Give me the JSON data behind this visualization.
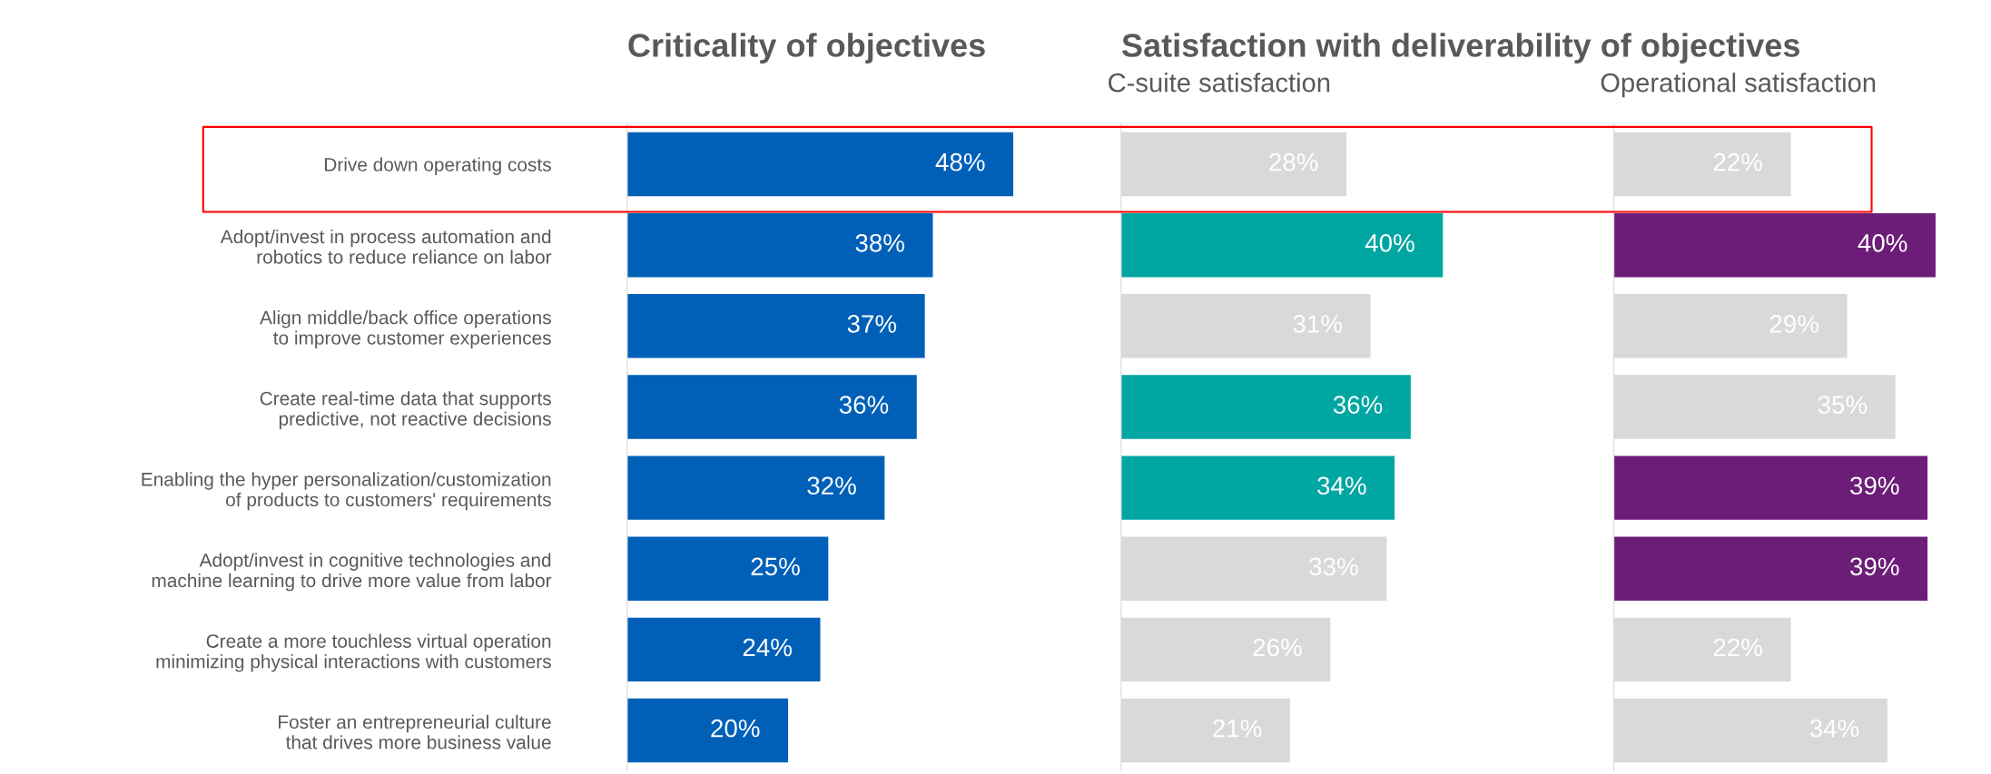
{
  "chart_data": [
    {
      "type": "bar",
      "orientation": "horizontal",
      "title": "Criticality of objectives",
      "categories": [
        "Drive down operating costs",
        "Adopt/invest in process automation and\nrobotics to reduce reliance on labor",
        "Align middle/back office operations\nto improve customer experiences",
        "Create real-time data that supports\npredictive, not reactive decisions",
        "Enabling the hyper personalization/customization\nof products to customers' requirements",
        "Adopt/invest in cognitive technologies and\nmachine learning to drive more value from labor",
        "Create a more touchless virtual operation\nminimizing physical interactions with customers",
        "Foster an entrepreneurial culture\nthat drives more business value"
      ],
      "values": [
        48,
        38,
        37,
        36,
        32,
        25,
        24,
        20
      ],
      "colors": [
        "#0060b8",
        "#0060b8",
        "#0060b8",
        "#0060b8",
        "#0060b8",
        "#0060b8",
        "#0060b8",
        "#0060b8"
      ],
      "value_labels": [
        "48%",
        "38%",
        "37%",
        "36%",
        "32%",
        "25%",
        "24%",
        "20%"
      ],
      "tick_labels": "y"
    },
    {
      "type": "bar",
      "orientation": "horizontal",
      "title": "Satisfaction with deliverability of objectives",
      "subtitle": "C-suite satisfaction",
      "categories": [
        null,
        null,
        null,
        null,
        null,
        null,
        null,
        null
      ],
      "values": [
        28,
        40,
        31,
        36,
        34,
        33,
        26,
        21
      ],
      "colors": [
        "#d9d9d9",
        "#00a6a2",
        "#d9d9d9",
        "#00a6a2",
        "#00a6a2",
        "#d9d9d9",
        "#d9d9d9",
        "#d9d9d9"
      ],
      "value_labels": [
        "28%",
        "40%",
        "31%",
        "36%",
        "34%",
        "33%",
        "26%",
        "21%"
      ],
      "tick_labels": false
    },
    {
      "type": "bar",
      "orientation": "horizontal",
      "subtitle": "Operational satisfaction",
      "categories": [
        null,
        null,
        null,
        null,
        null,
        null,
        null,
        null
      ],
      "values": [
        22,
        40,
        29,
        35,
        39,
        39,
        22,
        34
      ],
      "colors": [
        "#d9d9d9",
        "#6c1d78",
        "#d9d9d9",
        "#d9d9d9",
        "#6c1d78",
        "#6c1d78",
        "#d9d9d9",
        "#d9d9d9"
      ],
      "value_labels": [
        "22%",
        "40%",
        "29%",
        "35%",
        "39%",
        "39%",
        "22%",
        "34%"
      ],
      "tick_labels": false
    }
  ]
}
